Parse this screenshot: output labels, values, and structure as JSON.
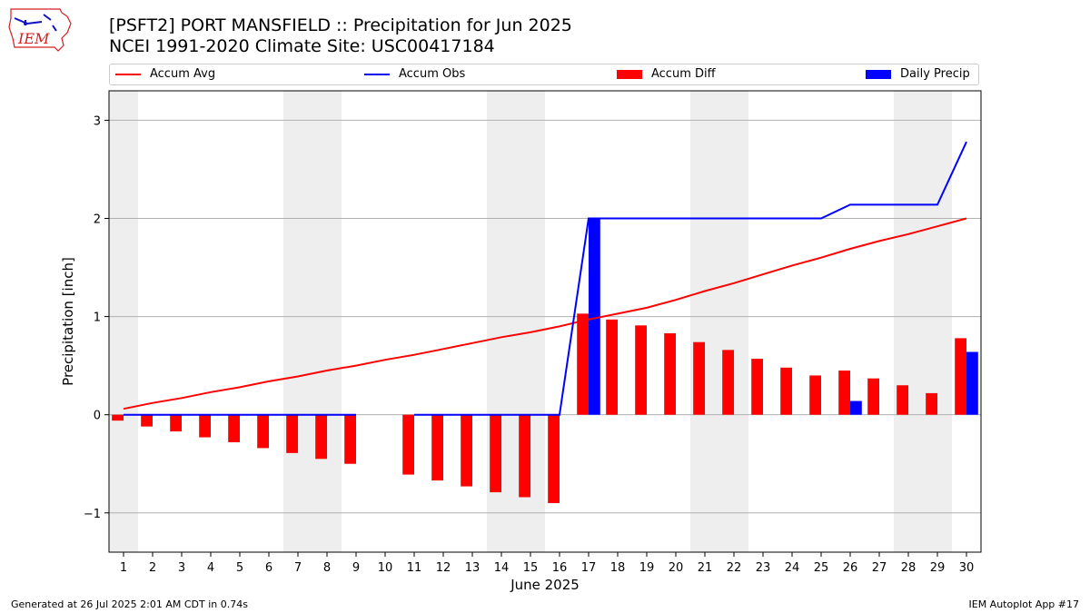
{
  "title": {
    "line1": "[PSFT2] PORT MANSFIELD :: Precipitation for Jun 2025",
    "line2": "NCEI 1991-2020 Climate Site: USC00417184"
  },
  "logo": {
    "text": "IEM"
  },
  "legend": {
    "accum_avg": "Accum Avg",
    "accum_obs": "Accum Obs",
    "accum_diff": "Accum Diff",
    "daily_precip": "Daily Precip"
  },
  "footer": {
    "generated": "Generated at 26 Jul 2025 2:01 AM CDT in 0.74s",
    "app": "IEM Autoplot App #17"
  },
  "colors": {
    "avg": "#ff0000",
    "obs": "#0000ff",
    "diff": "#ff0000",
    "daily": "#0000ff",
    "weekend_band": "#eeeeee",
    "grid": "#b0b0b0"
  },
  "chart_data": {
    "type": "bar",
    "xlabel": "June 2025",
    "ylabel": "Precipitation [inch]",
    "xlim": [
      0.5,
      30.5
    ],
    "ylim": [
      -1.4,
      3.3
    ],
    "yticks": [
      -1,
      0,
      1,
      2,
      3
    ],
    "ytick_labels": [
      "−1",
      "0",
      "1",
      "2",
      "3"
    ],
    "days": [
      1,
      2,
      3,
      4,
      5,
      6,
      7,
      8,
      9,
      10,
      11,
      12,
      13,
      14,
      15,
      16,
      17,
      18,
      19,
      20,
      21,
      22,
      23,
      24,
      25,
      26,
      27,
      28,
      29,
      30
    ],
    "shaded_days": [
      1,
      7,
      8,
      14,
      15,
      21,
      22,
      28,
      29
    ],
    "grid": "horizontal",
    "legend_position": "top",
    "series": [
      {
        "name": "Accum Avg",
        "kind": "line",
        "values": [
          0.06,
          0.12,
          0.17,
          0.23,
          0.28,
          0.34,
          0.39,
          0.45,
          0.5,
          0.56,
          0.61,
          0.67,
          0.73,
          0.79,
          0.84,
          0.9,
          0.97,
          1.03,
          1.09,
          1.17,
          1.26,
          1.34,
          1.43,
          1.52,
          1.6,
          1.69,
          1.77,
          1.84,
          1.92,
          2.0
        ]
      },
      {
        "name": "Accum Obs",
        "kind": "line",
        "values": [
          0,
          0,
          0,
          0,
          0,
          0,
          0,
          0,
          0,
          null,
          0,
          0,
          0,
          0,
          0,
          0,
          2.0,
          2.0,
          2.0,
          2.0,
          2.0,
          2.0,
          2.0,
          2.0,
          2.0,
          2.14,
          2.14,
          2.14,
          2.14,
          2.78
        ]
      },
      {
        "name": "Accum Diff",
        "kind": "bar",
        "values": [
          -0.06,
          -0.12,
          -0.17,
          -0.23,
          -0.28,
          -0.34,
          -0.39,
          -0.45,
          -0.5,
          null,
          -0.61,
          -0.67,
          -0.73,
          -0.79,
          -0.84,
          -0.9,
          1.03,
          0.97,
          0.91,
          0.83,
          0.74,
          0.66,
          0.57,
          0.48,
          0.4,
          0.45,
          0.37,
          0.3,
          0.22,
          0.78
        ]
      },
      {
        "name": "Daily Precip",
        "kind": "bar",
        "values": [
          0,
          0,
          0,
          0,
          0,
          0,
          0,
          0,
          0,
          null,
          0,
          0,
          0,
          0,
          0,
          0,
          2.0,
          0,
          0,
          0,
          0,
          0,
          0,
          0,
          0,
          0.14,
          0,
          0,
          0,
          0.64
        ]
      }
    ]
  }
}
